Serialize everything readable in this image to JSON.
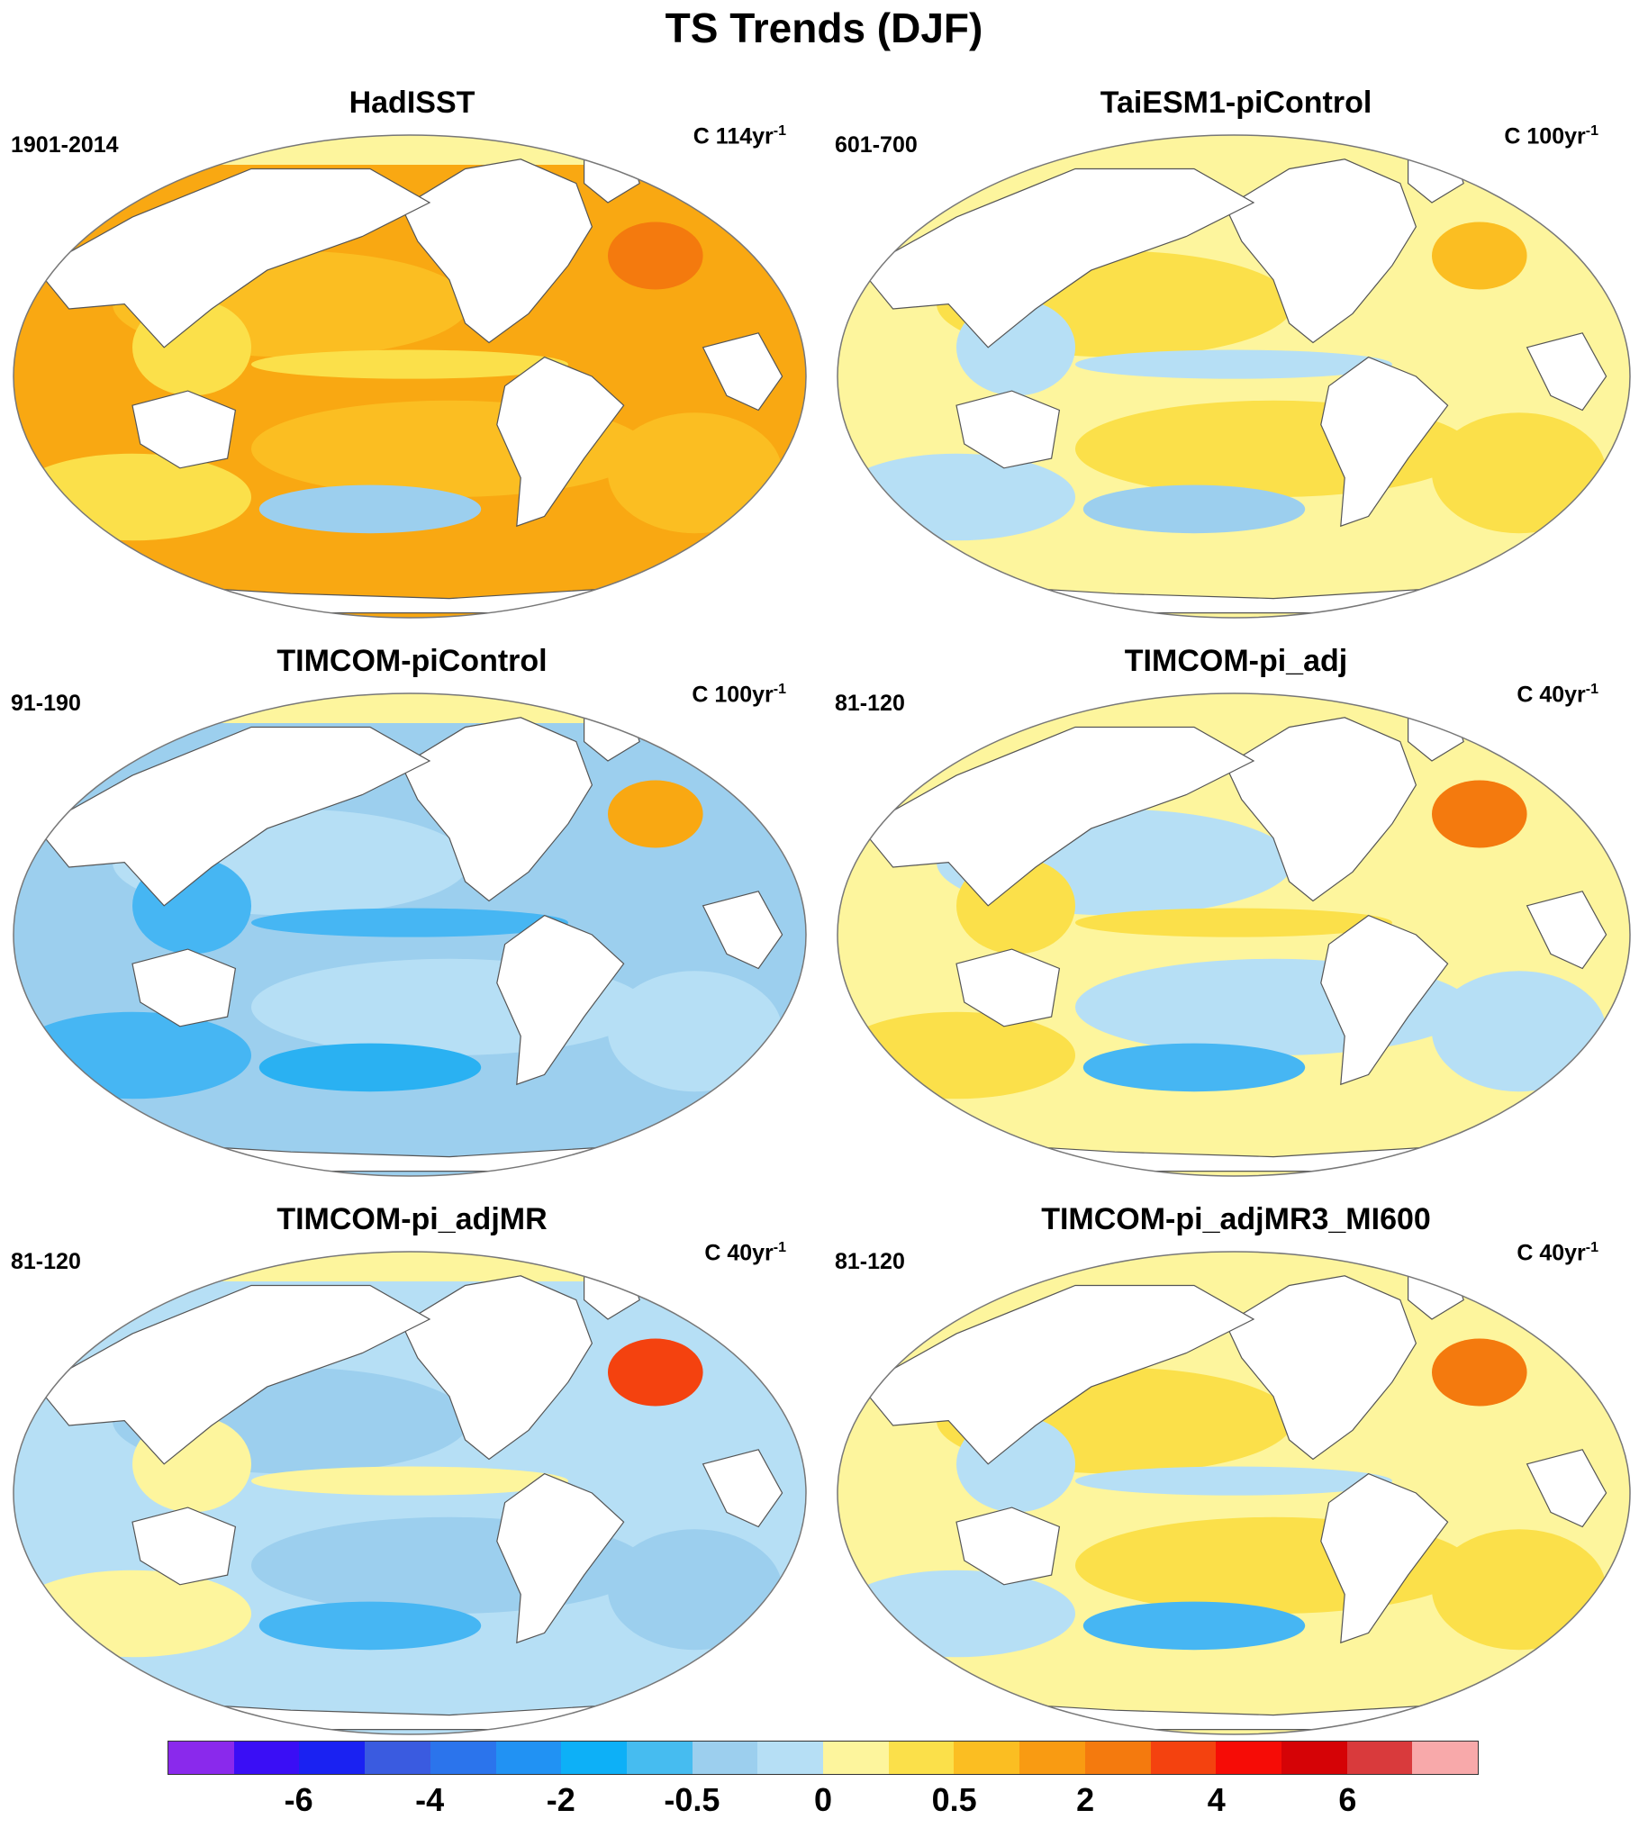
{
  "figure": {
    "title": "TS Trends (DJF)"
  },
  "panels": [
    {
      "title": "HadISST",
      "period": "1901-2014",
      "units_prefix": "C 114yr",
      "units_exp": "-1",
      "dominant": "#f9a812",
      "secondary": "#fbbe22",
      "tertiary": "#fbe04a",
      "hot": "#f47a0e",
      "cold": "#9ccfee"
    },
    {
      "title": "TaiESM1-piControl",
      "period": "601-700",
      "units_prefix": "C 100yr",
      "units_exp": "-1",
      "dominant": "#fdf59d",
      "secondary": "#fbe04a",
      "tertiary": "#b6dff5",
      "hot": "#fbbe22",
      "cold": "#9ccfee"
    },
    {
      "title": "TIMCOM-piControl",
      "period": "91-190",
      "units_prefix": "C 100yr",
      "units_exp": "-1",
      "dominant": "#9ccfee",
      "secondary": "#b6dff5",
      "tertiary": "#46b6f3",
      "hot": "#f9a812",
      "cold": "#2ab1f2"
    },
    {
      "title": "TIMCOM-pi_adj",
      "period": "81-120",
      "units_prefix": "C 40yr",
      "units_exp": "-1",
      "dominant": "#fdf59d",
      "secondary": "#b6dff5",
      "tertiary": "#fbe04a",
      "hot": "#f47a0e",
      "cold": "#46b6f3"
    },
    {
      "title": "TIMCOM-pi_adjMR",
      "period": "81-120",
      "units_prefix": "C 40yr",
      "units_exp": "-1",
      "dominant": "#b6dff5",
      "secondary": "#9ccfee",
      "tertiary": "#fdf59d",
      "hot": "#f4420f",
      "cold": "#46b6f3"
    },
    {
      "title": "TIMCOM-pi_adjMR3_MI600",
      "period": "81-120",
      "units_prefix": "C 40yr",
      "units_exp": "-1",
      "dominant": "#fdf59d",
      "secondary": "#fbe04a",
      "tertiary": "#b6dff5",
      "hot": "#f47a0e",
      "cold": "#46b6f3"
    }
  ],
  "colorbar": {
    "colors": [
      "#8a29ec",
      "#3a0ef5",
      "#1a22f2",
      "#3a5be0",
      "#2b74ec",
      "#2192f3",
      "#0db0f7",
      "#46bcf0",
      "#9ccfee",
      "#b6dff5",
      "#fdf59d",
      "#fbe04a",
      "#fbbe22",
      "#f99b12",
      "#f47a0e",
      "#f4420f",
      "#f60c06",
      "#d50306",
      "#d93a3c",
      "#f8a9aa"
    ],
    "labels": [
      "-6",
      "-4",
      "-2",
      "-0.5",
      "0",
      "0.5",
      "2",
      "4",
      "6"
    ],
    "label_boundaries": [
      2,
      4,
      6,
      8,
      10,
      12,
      14,
      16,
      18
    ]
  }
}
